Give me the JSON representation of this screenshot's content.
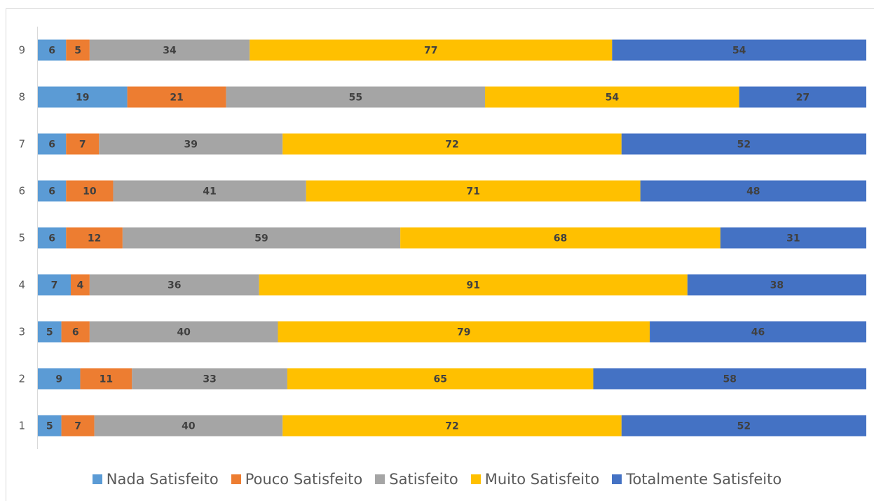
{
  "chart_data": {
    "type": "bar",
    "orientation": "horizontal",
    "stacked": "percent",
    "categories": [
      "1",
      "2",
      "3",
      "4",
      "5",
      "6",
      "7",
      "8",
      "9"
    ],
    "series": [
      {
        "name": "Nada Satisfeito",
        "color": "#5b9bd5",
        "values": [
          5,
          9,
          5,
          7,
          6,
          6,
          6,
          19,
          6
        ]
      },
      {
        "name": "Pouco Satisfeito",
        "color": "#ed7d31",
        "values": [
          7,
          11,
          6,
          4,
          12,
          10,
          7,
          21,
          5
        ]
      },
      {
        "name": "Satisfeito",
        "color": "#a5a5a5",
        "values": [
          40,
          33,
          40,
          36,
          59,
          41,
          39,
          55,
          34
        ]
      },
      {
        "name": "Muito Satisfeito",
        "color": "#ffc000",
        "values": [
          72,
          65,
          79,
          91,
          68,
          71,
          72,
          54,
          77
        ]
      },
      {
        "name": "Totalmente Satisfeito",
        "color": "#4472c4",
        "values": [
          52,
          58,
          46,
          38,
          31,
          48,
          52,
          27,
          54
        ]
      }
    ],
    "data_labels": true,
    "legend_position": "bottom",
    "grid": false
  }
}
